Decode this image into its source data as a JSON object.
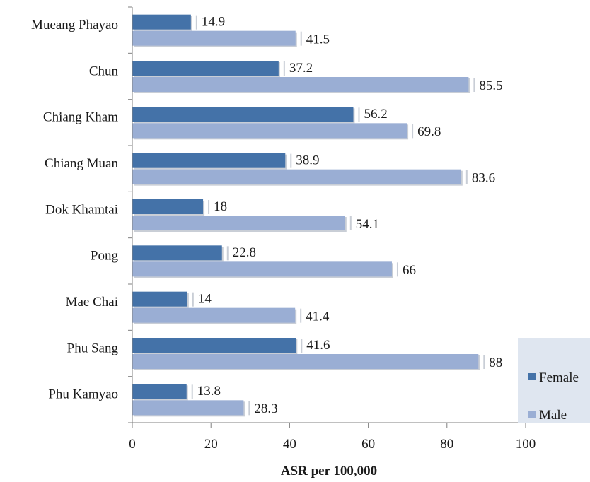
{
  "chart_data": {
    "type": "bar",
    "orientation": "horizontal",
    "categories": [
      "Mueang Phayao",
      "Chun",
      "Chiang Kham",
      "Chiang Muan",
      "Dok Khamtai",
      "Pong",
      "Mae Chai",
      "Phu Sang",
      "Phu Kamyao"
    ],
    "series": [
      {
        "name": "Female",
        "color": "#4472a8",
        "values": [
          14.9,
          37.2,
          56.2,
          38.9,
          18,
          22.8,
          14,
          41.6,
          13.8
        ]
      },
      {
        "name": "Male",
        "color": "#9aaed4",
        "values": [
          41.5,
          85.5,
          69.8,
          83.6,
          54.1,
          66,
          41.4,
          88,
          28.3
        ]
      }
    ],
    "x_ticks": [
      "0",
      "20",
      "40",
      "60",
      "80",
      "100"
    ],
    "xlim": [
      0,
      100
    ],
    "xlabel": "ASR per 100,000",
    "title": "",
    "grid": false,
    "legend_position": "right",
    "legend_background": "#dfe6f0"
  }
}
